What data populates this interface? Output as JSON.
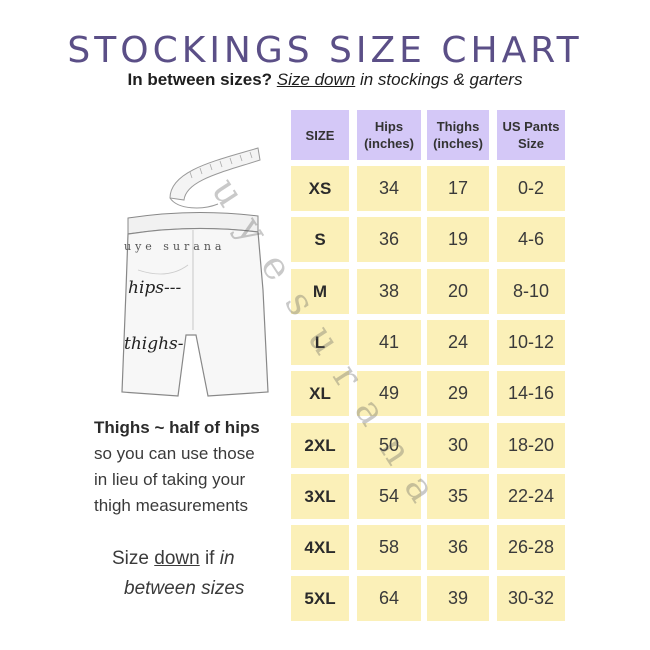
{
  "title": "STOCKINGS SIZE CHART",
  "subtitle": {
    "bold": "In between sizes?",
    "underlined": "Size down",
    "rest": " in stockings & garters"
  },
  "table": {
    "headers": [
      {
        "line1": "SIZE",
        "line2": ""
      },
      {
        "line1": "Hips",
        "line2": "(inches)"
      },
      {
        "line1": "Thighs",
        "line2": "(inches)"
      },
      {
        "line1": "US Pants",
        "line2": "Size"
      }
    ],
    "rows": [
      [
        "XS",
        "34",
        "17",
        "0-2"
      ],
      [
        "S",
        "36",
        "19",
        "4-6"
      ],
      [
        "M",
        "38",
        "20",
        "8-10"
      ],
      [
        "L",
        "41",
        "24",
        "10-12"
      ],
      [
        "XL",
        "49",
        "29",
        "14-16"
      ],
      [
        "2XL",
        "50",
        "30",
        "18-20"
      ],
      [
        "3XL",
        "54",
        "35",
        "22-24"
      ],
      [
        "4XL",
        "58",
        "36",
        "26-28"
      ],
      [
        "5XL",
        "64",
        "39",
        "30-32"
      ]
    ]
  },
  "figure": {
    "brand": "uye surana",
    "hips_label": "hips---",
    "thighs_label": "thighs-"
  },
  "note": {
    "heading": "Thighs ~ half of hips",
    "line1": "so you can use those",
    "line2": "in lieu of taking your",
    "line3": "thigh measurements"
  },
  "tip": {
    "prefix": "Size ",
    "underlined": "down",
    "middle": " if ",
    "italic1": "in",
    "line2": "between sizes"
  },
  "watermark": "uyesurana",
  "colors": {
    "header_bg": "#d4c8f7",
    "cell_bg": "#fbf0b8",
    "title": "#5b4f87"
  }
}
